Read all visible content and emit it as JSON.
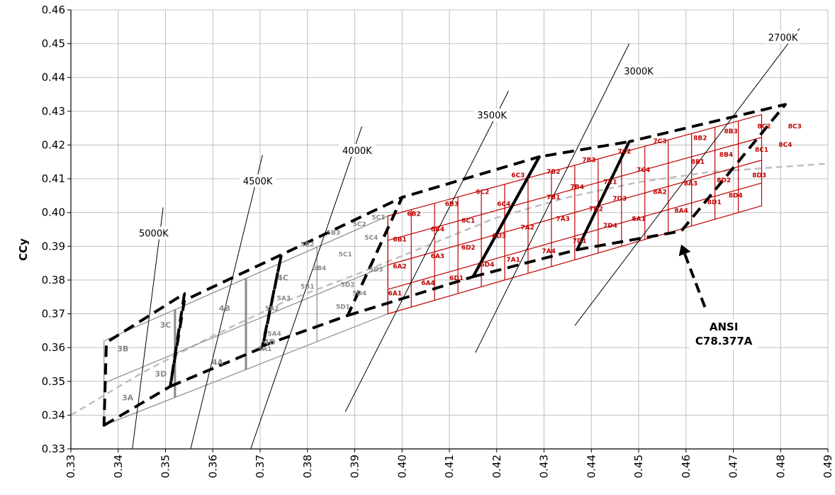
{
  "chart_data": {
    "type": "scatter",
    "title": "",
    "xlabel": "",
    "ylabel": "CCy",
    "xlim": [
      0.33,
      0.49
    ],
    "ylim": [
      0.33,
      0.46
    ],
    "x_ticks": [
      "0.33",
      "0.34",
      "0.35",
      "0.36",
      "0.37",
      "0.38",
      "0.39",
      "0.40",
      "0.41",
      "0.42",
      "0.43",
      "0.44",
      "0.45",
      "0.46",
      "0.47",
      "0.48",
      "0.49"
    ],
    "y_ticks": [
      "0.33",
      "0.34",
      "0.35",
      "0.36",
      "0.37",
      "0.38",
      "0.39",
      "0.40",
      "0.41",
      "0.42",
      "0.43",
      "0.44",
      "0.45",
      "0.46"
    ],
    "grid": true,
    "colors": {
      "grid": "#bfbfbf",
      "red_bins": "#c00000",
      "gray_bins": "#8a8a8a",
      "planckian": "#bfbfbf",
      "ansi": "#000000"
    },
    "cct_lines": [
      {
        "label": "5000K",
        "from": [
          0.343,
          0.33
        ],
        "to": [
          0.3495,
          0.4015
        ],
        "label_at": [
          0.3475,
          0.3935
        ]
      },
      {
        "label": "4500K",
        "from": [
          0.3553,
          0.33
        ],
        "to": [
          0.3705,
          0.417
        ],
        "label_at": [
          0.3695,
          0.409
        ]
      },
      {
        "label": "4000K",
        "from": [
          0.368,
          0.33
        ],
        "to": [
          0.3915,
          0.4255
        ],
        "label_at": [
          0.3905,
          0.418
        ]
      },
      {
        "label": "3500K",
        "from": [
          0.388,
          0.341
        ],
        "to": [
          0.4225,
          0.436
        ],
        "label_at": [
          0.419,
          0.4285
        ]
      },
      {
        "label": "3000K",
        "from": [
          0.4155,
          0.3585
        ],
        "to": [
          0.448,
          0.45
        ],
        "label_at": [
          0.45,
          0.4415
        ]
      },
      {
        "label": "2700K",
        "from": [
          0.4365,
          0.3665
        ],
        "to": [
          0.484,
          0.4545
        ],
        "label_at": [
          0.4805,
          0.4515
        ]
      }
    ],
    "planckian_locus": [
      [
        0.33,
        0.34
      ],
      [
        0.345,
        0.3525
      ],
      [
        0.36,
        0.3635
      ],
      [
        0.375,
        0.3735
      ],
      [
        0.39,
        0.3815
      ],
      [
        0.405,
        0.39
      ],
      [
        0.42,
        0.3985
      ],
      [
        0.435,
        0.4045
      ],
      [
        0.45,
        0.409
      ],
      [
        0.465,
        0.412
      ],
      [
        0.48,
        0.4135
      ],
      [
        0.49,
        0.4145
      ]
    ],
    "gray_bins": {
      "polygon": [
        [
          0.337,
          0.337
        ],
        [
          0.397,
          0.37
        ],
        [
          0.397,
          0.399
        ],
        [
          0.337,
          0.362
        ]
      ],
      "grid_u": [
        0.25,
        0.5,
        0.75
      ],
      "grid_v": [
        0.5
      ],
      "heavy_u": [
        0.25,
        0.5
      ]
    },
    "red_bins": {
      "polygon": [
        [
          0.397,
          0.37
        ],
        [
          0.476,
          0.402
        ],
        [
          0.476,
          0.429
        ],
        [
          0.397,
          0.399
        ]
      ],
      "grid_u": [
        0.0625,
        0.125,
        0.1875,
        0.25,
        0.3125,
        0.375,
        0.4375,
        0.5,
        0.5625,
        0.625,
        0.6875,
        0.75,
        0.8125,
        0.875,
        0.9375
      ],
      "grid_v": [
        0.25,
        0.5,
        0.75
      ]
    },
    "heavy_black_line": [
      [
        0.415,
        0.381
      ],
      [
        0.429,
        0.4165
      ]
    ],
    "ansi_quadrangles": [
      [
        [
          0.337,
          0.337
        ],
        [
          0.351,
          0.3485
        ],
        [
          0.354,
          0.376
        ],
        [
          0.3375,
          0.3615
        ]
      ],
      [
        [
          0.351,
          0.3485
        ],
        [
          0.3705,
          0.36
        ],
        [
          0.3745,
          0.3875
        ],
        [
          0.354,
          0.374
        ]
      ],
      [
        [
          0.3705,
          0.3605
        ],
        [
          0.3885,
          0.3695
        ],
        [
          0.4,
          0.4045
        ],
        [
          0.3745,
          0.3875
        ]
      ],
      [
        [
          0.3885,
          0.3695
        ],
        [
          0.415,
          0.381
        ],
        [
          0.429,
          0.4165
        ],
        [
          0.4,
          0.4045
        ]
      ],
      [
        [
          0.415,
          0.381
        ],
        [
          0.437,
          0.389
        ],
        [
          0.448,
          0.421
        ],
        [
          0.429,
          0.4165
        ]
      ],
      [
        [
          0.437,
          0.389
        ],
        [
          0.459,
          0.3945
        ],
        [
          0.481,
          0.432
        ],
        [
          0.448,
          0.421
        ]
      ]
    ],
    "ansi_arrow": {
      "from": [
        0.464,
        0.372
      ],
      "to": [
        0.459,
        0.3905
      ]
    },
    "annotation": {
      "line1": "ANSI",
      "line2": "C78.377A",
      "at": [
        0.468,
        0.3655
      ]
    },
    "bin_labels_gray": [
      {
        "t": "3A",
        "x": 0.342,
        "y": 0.345
      },
      {
        "t": "3B",
        "x": 0.341,
        "y": 0.3595
      },
      {
        "t": "3C",
        "x": 0.35,
        "y": 0.3665
      },
      {
        "t": "3D",
        "x": 0.349,
        "y": 0.352
      },
      {
        "t": "4A",
        "x": 0.361,
        "y": 0.3555
      },
      {
        "t": "4B",
        "x": 0.3625,
        "y": 0.3715
      },
      {
        "t": "4C",
        "x": 0.3748,
        "y": 0.3805
      },
      {
        "t": "4D",
        "x": 0.372,
        "y": 0.3615
      }
    ],
    "bin_labels_gray_small": [
      {
        "t": "5A1",
        "x": 0.371,
        "y": 0.3595
      },
      {
        "t": "5A2",
        "x": 0.3725,
        "y": 0.3715
      },
      {
        "t": "5A3",
        "x": 0.375,
        "y": 0.3745
      },
      {
        "t": "5A4",
        "x": 0.373,
        "y": 0.364
      },
      {
        "t": "5B1",
        "x": 0.38,
        "y": 0.378
      },
      {
        "t": "5B2",
        "x": 0.38,
        "y": 0.3905
      },
      {
        "t": "5B3",
        "x": 0.3855,
        "y": 0.394
      },
      {
        "t": "5B4",
        "x": 0.3825,
        "y": 0.3835
      },
      {
        "t": "5C1",
        "x": 0.388,
        "y": 0.3875
      },
      {
        "t": "5C2",
        "x": 0.391,
        "y": 0.3965
      },
      {
        "t": "5C3",
        "x": 0.395,
        "y": 0.3985
      },
      {
        "t": "5C4",
        "x": 0.3935,
        "y": 0.3925
      },
      {
        "t": "5D1",
        "x": 0.3875,
        "y": 0.372
      },
      {
        "t": "5D2",
        "x": 0.3885,
        "y": 0.3785
      },
      {
        "t": "5D3",
        "x": 0.3945,
        "y": 0.383
      },
      {
        "t": "5D4",
        "x": 0.391,
        "y": 0.376
      }
    ],
    "bin_labels_red": [
      {
        "t": "6A1",
        "x": 0.3985,
        "y": 0.376
      },
      {
        "t": "6A2",
        "x": 0.3995,
        "y": 0.384
      },
      {
        "t": "6A3",
        "x": 0.4075,
        "y": 0.387
      },
      {
        "t": "6A4",
        "x": 0.4055,
        "y": 0.379
      },
      {
        "t": "6B1",
        "x": 0.3995,
        "y": 0.392
      },
      {
        "t": "6B2",
        "x": 0.4025,
        "y": 0.3995
      },
      {
        "t": "6B3",
        "x": 0.4105,
        "y": 0.4025
      },
      {
        "t": "6B4",
        "x": 0.4075,
        "y": 0.395
      },
      {
        "t": "6C1",
        "x": 0.414,
        "y": 0.3975
      },
      {
        "t": "6C2",
        "x": 0.417,
        "y": 0.406
      },
      {
        "t": "6C3",
        "x": 0.4245,
        "y": 0.411
      },
      {
        "t": "6C4",
        "x": 0.4215,
        "y": 0.4025
      },
      {
        "t": "6D1",
        "x": 0.4115,
        "y": 0.3805
      },
      {
        "t": "6D2",
        "x": 0.414,
        "y": 0.3895
      },
      {
        "t": "6D3",
        "x": 0.4205,
        "y": 0.393
      },
      {
        "t": "6D4",
        "x": 0.418,
        "y": 0.3845
      }
    ],
    "bin_labels_red_7": [
      {
        "t": "7A1",
        "x": 0.4235,
        "y": 0.386
      },
      {
        "t": "7A2",
        "x": 0.4265,
        "y": 0.3955
      },
      {
        "t": "7A3",
        "x": 0.434,
        "y": 0.398
      },
      {
        "t": "7A4",
        "x": 0.431,
        "y": 0.3885
      },
      {
        "t": "7B1",
        "x": 0.432,
        "y": 0.4045
      },
      {
        "t": "7B2",
        "x": 0.432,
        "y": 0.412
      },
      {
        "t": "7B3",
        "x": 0.4395,
        "y": 0.4155
      },
      {
        "t": "7B4",
        "x": 0.437,
        "y": 0.4075
      },
      {
        "t": "7C1",
        "x": 0.444,
        "y": 0.409
      },
      {
        "t": "7C2",
        "x": 0.447,
        "y": 0.418
      },
      {
        "t": "7C3",
        "x": 0.4545,
        "y": 0.421
      },
      {
        "t": "7C4",
        "x": 0.451,
        "y": 0.4125
      },
      {
        "t": "7D1",
        "x": 0.4375,
        "y": 0.3915
      },
      {
        "t": "7D2",
        "x": 0.441,
        "y": 0.401
      },
      {
        "t": "7D3",
        "x": 0.446,
        "y": 0.404
      },
      {
        "t": "7D4",
        "x": 0.444,
        "y": 0.396
      }
    ],
    "bin_labels_red_8": [
      {
        "t": "8A1",
        "x": 0.45,
        "y": 0.398
      },
      {
        "t": "8A2",
        "x": 0.4545,
        "y": 0.406
      },
      {
        "t": "8A3",
        "x": 0.461,
        "y": 0.4085
      },
      {
        "t": "8A4",
        "x": 0.459,
        "y": 0.4005
      },
      {
        "t": "8B1",
        "x": 0.4625,
        "y": 0.415
      },
      {
        "t": "8B2",
        "x": 0.463,
        "y": 0.422
      },
      {
        "t": "8B3",
        "x": 0.4695,
        "y": 0.424
      },
      {
        "t": "8B4",
        "x": 0.4685,
        "y": 0.417
      },
      {
        "t": "8C1",
        "x": 0.476,
        "y": 0.4185
      },
      {
        "t": "8C2",
        "x": 0.4765,
        "y": 0.4255
      },
      {
        "t": "8C3",
        "x": 0.483,
        "y": 0.4255
      },
      {
        "t": "8C4",
        "x": 0.481,
        "y": 0.42
      },
      {
        "t": "8D1",
        "x": 0.466,
        "y": 0.403
      },
      {
        "t": "8D2",
        "x": 0.468,
        "y": 0.4095
      },
      {
        "t": "8D3",
        "x": 0.4755,
        "y": 0.411
      },
      {
        "t": "8D4",
        "x": 0.4705,
        "y": 0.405
      }
    ]
  }
}
